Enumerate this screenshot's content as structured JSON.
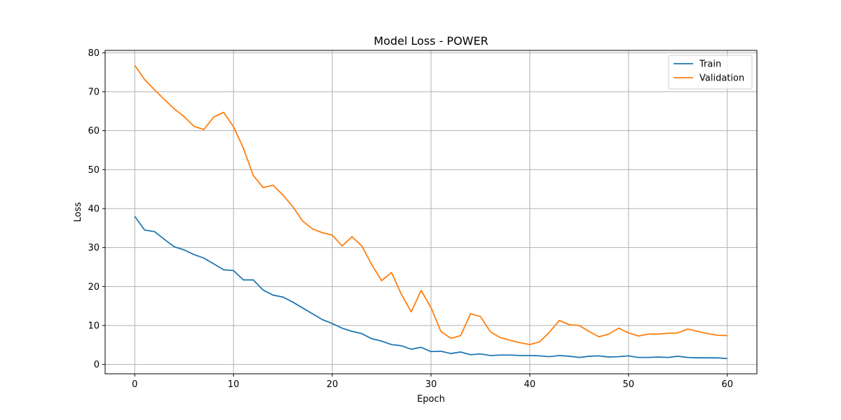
{
  "chart_data": {
    "type": "line",
    "title": "Model Loss - POWER",
    "xlabel": "Epoch",
    "ylabel": "Loss",
    "xlim": [
      -3,
      63
    ],
    "ylim": [
      -2.4,
      80.6
    ],
    "xticks": [
      0,
      10,
      20,
      30,
      40,
      50,
      60
    ],
    "yticks": [
      0,
      10,
      20,
      30,
      40,
      50,
      60,
      70,
      80
    ],
    "grid": true,
    "legend_position": "top-right",
    "x": [
      0,
      1,
      2,
      3,
      4,
      5,
      6,
      7,
      8,
      9,
      10,
      11,
      12,
      13,
      14,
      15,
      16,
      17,
      18,
      19,
      20,
      21,
      22,
      23,
      24,
      25,
      26,
      27,
      28,
      29,
      30,
      31,
      32,
      33,
      34,
      35,
      36,
      37,
      38,
      39,
      40,
      41,
      42,
      43,
      44,
      45,
      46,
      47,
      48,
      49,
      50,
      51,
      52,
      53,
      54,
      55,
      56,
      57,
      58,
      59,
      60
    ],
    "series": [
      {
        "name": "Train",
        "color": "#1f77b4",
        "values": [
          38.0,
          34.5,
          34.1,
          32.1,
          30.2,
          29.4,
          28.2,
          27.3,
          25.8,
          24.3,
          24.1,
          21.7,
          21.7,
          19.1,
          17.8,
          17.3,
          16.0,
          14.5,
          13.0,
          11.5,
          10.5,
          9.3,
          8.5,
          7.9,
          6.6,
          6.0,
          5.1,
          4.8,
          3.9,
          4.4,
          3.3,
          3.4,
          2.8,
          3.2,
          2.5,
          2.7,
          2.3,
          2.4,
          2.4,
          2.3,
          2.3,
          2.2,
          2.0,
          2.3,
          2.1,
          1.8,
          2.1,
          2.2,
          1.9,
          2.0,
          2.2,
          1.8,
          1.8,
          1.9,
          1.8,
          2.1,
          1.8,
          1.7,
          1.7,
          1.7,
          1.5
        ]
      },
      {
        "name": "Validation",
        "color": "#ff7f0e",
        "values": [
          76.8,
          73.1,
          70.5,
          68.0,
          65.6,
          63.6,
          61.1,
          60.3,
          63.5,
          64.7,
          61.0,
          55.5,
          48.5,
          45.4,
          46.0,
          43.5,
          40.5,
          36.8,
          34.8,
          33.8,
          33.2,
          30.4,
          32.8,
          30.4,
          25.6,
          21.5,
          23.6,
          18.0,
          13.5,
          19.0,
          14.6,
          8.5,
          6.7,
          7.4,
          13.0,
          12.3,
          8.4,
          6.9,
          6.2,
          5.6,
          5.1,
          5.8,
          8.3,
          11.3,
          10.2,
          10.0,
          8.5,
          7.1,
          7.8,
          9.3,
          8.1,
          7.3,
          7.8,
          7.8,
          8.0,
          8.1,
          9.1,
          8.5,
          7.9,
          7.5,
          7.4
        ]
      }
    ]
  }
}
